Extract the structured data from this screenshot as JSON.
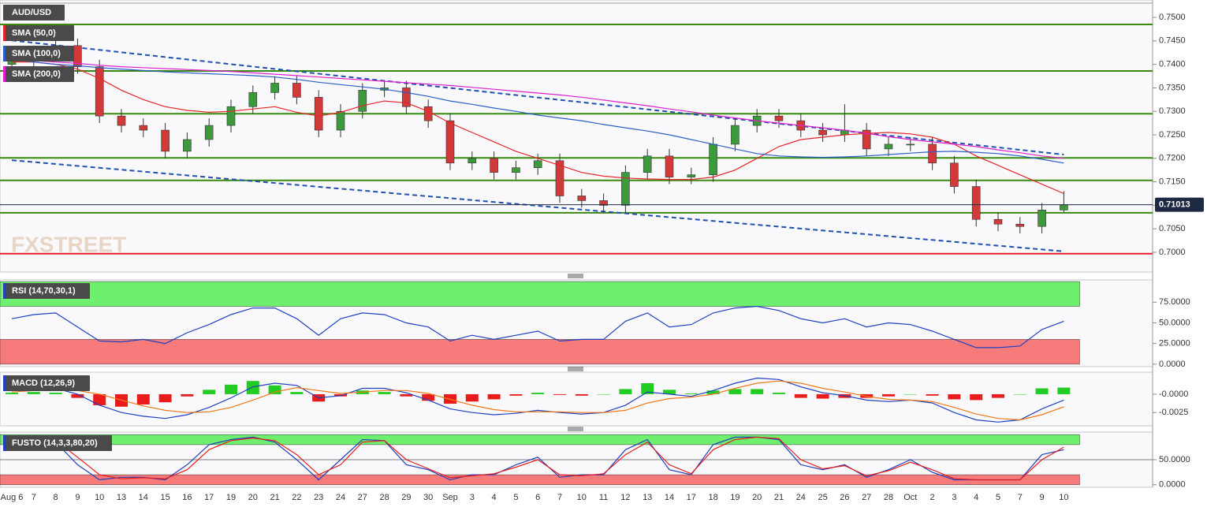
{
  "chart_data": [
    {
      "type": "candlestick",
      "title": "AUD/USD",
      "watermark": "FXSTREET",
      "categories": [
        "Aug 6",
        "7",
        "8",
        "9",
        "10",
        "13",
        "14",
        "15",
        "16",
        "17",
        "19",
        "20",
        "21",
        "22",
        "23",
        "24",
        "27",
        "28",
        "29",
        "30",
        "Sep",
        "3",
        "4",
        "5",
        "6",
        "7",
        "10",
        "11",
        "12",
        "13",
        "14",
        "17",
        "18",
        "19",
        "20",
        "21",
        "24",
        "25",
        "26",
        "27",
        "28",
        "Oct",
        "2",
        "3",
        "4",
        "5",
        "7",
        "9",
        "10"
      ],
      "open": [
        0.74,
        0.741,
        0.7425,
        0.744,
        0.7395,
        0.729,
        0.727,
        0.726,
        0.7215,
        0.724,
        0.727,
        0.731,
        0.734,
        0.736,
        0.733,
        0.726,
        0.73,
        0.7345,
        0.735,
        0.731,
        0.728,
        0.719,
        0.72,
        0.717,
        0.718,
        0.7195,
        0.712,
        0.711,
        0.71,
        0.717,
        0.7205,
        0.716,
        0.7165,
        0.723,
        0.727,
        0.729,
        0.728,
        0.726,
        0.725,
        0.726,
        0.722,
        0.723,
        0.723,
        0.719,
        0.714,
        0.707,
        0.706,
        0.7055,
        0.709
      ],
      "high": [
        0.7425,
        0.744,
        0.7455,
        0.7455,
        0.741,
        0.7305,
        0.7285,
        0.7275,
        0.7255,
        0.7285,
        0.7325,
        0.7355,
        0.7375,
        0.7375,
        0.7345,
        0.7315,
        0.736,
        0.7365,
        0.7365,
        0.7325,
        0.7295,
        0.7215,
        0.7215,
        0.7195,
        0.721,
        0.721,
        0.7135,
        0.7125,
        0.7185,
        0.722,
        0.722,
        0.718,
        0.7245,
        0.7285,
        0.7305,
        0.7305,
        0.7295,
        0.7275,
        0.7315,
        0.7275,
        0.7245,
        0.7245,
        0.7245,
        0.7205,
        0.7155,
        0.7085,
        0.7075,
        0.7105,
        0.713
      ],
      "low": [
        0.7385,
        0.7395,
        0.741,
        0.738,
        0.7275,
        0.7255,
        0.7245,
        0.72,
        0.72,
        0.7225,
        0.7255,
        0.7295,
        0.7325,
        0.7315,
        0.7245,
        0.7245,
        0.7285,
        0.733,
        0.7295,
        0.7265,
        0.7175,
        0.7175,
        0.7155,
        0.7155,
        0.7165,
        0.7105,
        0.7095,
        0.7085,
        0.7085,
        0.7155,
        0.7145,
        0.7145,
        0.715,
        0.7215,
        0.7255,
        0.7265,
        0.7245,
        0.7235,
        0.7235,
        0.7205,
        0.7205,
        0.7215,
        0.7175,
        0.7125,
        0.7055,
        0.7045,
        0.704,
        0.704,
        0.7085
      ],
      "close": [
        0.741,
        0.7425,
        0.744,
        0.7395,
        0.729,
        0.727,
        0.726,
        0.7215,
        0.724,
        0.727,
        0.731,
        0.734,
        0.736,
        0.733,
        0.726,
        0.73,
        0.7345,
        0.735,
        0.731,
        0.728,
        0.719,
        0.72,
        0.717,
        0.718,
        0.7195,
        0.712,
        0.711,
        0.71,
        0.717,
        0.7205,
        0.716,
        0.7165,
        0.723,
        0.727,
        0.729,
        0.728,
        0.726,
        0.725,
        0.726,
        0.722,
        0.723,
        0.723,
        0.719,
        0.714,
        0.707,
        0.706,
        0.7055,
        0.709,
        0.7101
      ],
      "up_color": "#3c9a3c",
      "down_color": "#d23a3a",
      "series": [
        {
          "name": "SMA (50,0)",
          "color": "#e8262a",
          "values": [
            0.7405,
            0.7405,
            0.74,
            0.739,
            0.737,
            0.7345,
            0.7325,
            0.731,
            0.7302,
            0.7298,
            0.73,
            0.7305,
            0.731,
            0.7298,
            0.729,
            0.7298,
            0.7312,
            0.7322,
            0.7318,
            0.73,
            0.7275,
            0.7255,
            0.7235,
            0.7215,
            0.72,
            0.7185,
            0.717,
            0.7162,
            0.7158,
            0.7156,
            0.7155,
            0.7155,
            0.716,
            0.7175,
            0.72,
            0.7225,
            0.724,
            0.7245,
            0.725,
            0.7253,
            0.7255,
            0.7252,
            0.7245,
            0.723,
            0.7205,
            0.7185,
            0.7165,
            0.7145,
            0.7125
          ]
        },
        {
          "name": "SMA (100,0)",
          "color": "#2b5fc8",
          "values": [
            0.741,
            0.7405,
            0.74,
            0.7397,
            0.7393,
            0.739,
            0.7387,
            0.7384,
            0.7382,
            0.738,
            0.7378,
            0.7376,
            0.7373,
            0.7368,
            0.7362,
            0.7357,
            0.7352,
            0.7347,
            0.734,
            0.7332,
            0.7322,
            0.7315,
            0.7307,
            0.73,
            0.7292,
            0.7286,
            0.728,
            0.7272,
            0.7265,
            0.7258,
            0.725,
            0.724,
            0.723,
            0.722,
            0.721,
            0.7205,
            0.7203,
            0.7202,
            0.7203,
            0.7205,
            0.7208,
            0.7211,
            0.7214,
            0.7215,
            0.7213,
            0.721,
            0.7205,
            0.7198,
            0.719
          ]
        },
        {
          "name": "SMA (200,0)",
          "color": "#e020d0",
          "values": [
            0.741,
            0.7408,
            0.7405,
            0.7402,
            0.7398,
            0.7395,
            0.7393,
            0.7391,
            0.7389,
            0.7387,
            0.7385,
            0.7382,
            0.7379,
            0.7376,
            0.7373,
            0.737,
            0.7367,
            0.7364,
            0.7361,
            0.7358,
            0.7355,
            0.7351,
            0.7347,
            0.7343,
            0.7339,
            0.7335,
            0.733,
            0.7324,
            0.7318,
            0.7312,
            0.7305,
            0.7299,
            0.7292,
            0.7286,
            0.728,
            0.7275,
            0.727,
            0.7265,
            0.726,
            0.7253,
            0.7246,
            0.724,
            0.7235,
            0.723,
            0.7225,
            0.7218,
            0.7212,
            0.7205,
            0.72
          ]
        }
      ],
      "levels": [
        0.7485,
        0.7386,
        0.7295,
        0.7201,
        0.7153,
        0.7084
      ],
      "level_color": "#3a8a10",
      "key_level": 0.6997,
      "key_level_color": "#e8202a",
      "trendlines": [
        {
          "x": [
            0,
            48
          ],
          "y": [
            0.7451,
            0.7208
          ]
        },
        {
          "x": [
            0,
            48
          ],
          "y": [
            0.7196,
            0.7002
          ]
        }
      ],
      "trendline_color": "#2050b0",
      "last_price": 0.71013,
      "ylim": [
        0.6958,
        0.7537
      ],
      "yticks": [
        {
          "value": 0.7,
          "label": "0.7000"
        },
        {
          "value": 0.705,
          "label": "0.7050"
        },
        {
          "value": 0.71,
          "label": "0.7100"
        },
        {
          "value": 0.715,
          "label": "0.7150"
        },
        {
          "value": 0.72,
          "label": "0.7200"
        },
        {
          "value": 0.725,
          "label": "0.7250"
        },
        {
          "value": 0.73,
          "label": "0.7300"
        },
        {
          "value": 0.735,
          "label": "0.7350"
        },
        {
          "value": 0.74,
          "label": "0.7400"
        },
        {
          "value": 0.745,
          "label": "0.7450"
        },
        {
          "value": 0.75,
          "label": "0.7500"
        }
      ]
    },
    {
      "type": "line",
      "title": "RSI (14,70,30,1)",
      "title_color": "#2040c0",
      "series": [
        {
          "color": "#2040c0",
          "values": [
            55,
            60,
            62,
            45,
            28,
            27,
            30,
            25,
            38,
            48,
            60,
            68,
            68,
            55,
            35,
            55,
            62,
            60,
            50,
            45,
            28,
            35,
            30,
            35,
            40,
            28,
            30,
            30,
            52,
            62,
            45,
            48,
            62,
            68,
            70,
            65,
            55,
            50,
            55,
            45,
            50,
            48,
            40,
            30,
            20,
            20,
            22,
            42,
            52
          ]
        }
      ],
      "bands": [
        {
          "range": [
            70,
            100
          ],
          "color": "#6ef06e"
        },
        {
          "range": [
            0,
            30
          ],
          "color": "#f77b7b"
        }
      ],
      "ylim": [
        -3,
        102
      ],
      "yticks": [
        {
          "value": 0,
          "label": "0.0000"
        },
        {
          "value": 25,
          "label": "25.0000"
        },
        {
          "value": 50,
          "label": "50.0000"
        },
        {
          "value": 75,
          "label": "75.0000"
        }
      ]
    },
    {
      "type": "macd",
      "title": "MACD (12,26,9)",
      "title_color": "#2040c0",
      "series": [
        {
          "color": "#2040c0",
          "values": [
            0.0005,
            0.0008,
            0.0008,
            0.0,
            -0.0015,
            -0.0025,
            -0.003,
            -0.0033,
            -0.0028,
            -0.0018,
            -0.0005,
            0.001,
            0.0015,
            0.0012,
            -0.0005,
            -0.0002,
            0.0008,
            0.0008,
            0.0002,
            -0.0008,
            -0.002,
            -0.0025,
            -0.0028,
            -0.0026,
            -0.0022,
            -0.0025,
            -0.0027,
            -0.0025,
            -0.0015,
            0.0003,
            0.0,
            -0.0003,
            0.0005,
            0.0015,
            0.0022,
            0.002,
            0.001,
            0.0002,
            -0.0002,
            -0.0008,
            -0.001,
            -0.0008,
            -0.0012,
            -0.0025,
            -0.0035,
            -0.0038,
            -0.0035,
            -0.002,
            -0.0008
          ]
        },
        {
          "color": "#f07818",
          "values": [
            0.0003,
            0.0005,
            0.0006,
            0.0005,
            0.0,
            -0.0008,
            -0.0016,
            -0.0022,
            -0.0025,
            -0.0024,
            -0.0018,
            -0.0008,
            0.0003,
            0.0009,
            0.0005,
            0.0001,
            0.0003,
            0.0005,
            0.0005,
            0.0001,
            -0.0007,
            -0.0015,
            -0.0021,
            -0.0024,
            -0.0024,
            -0.0024,
            -0.0025,
            -0.0025,
            -0.0022,
            -0.0012,
            -0.0006,
            -0.0004,
            0.0,
            0.0008,
            0.0015,
            0.0018,
            0.0015,
            0.0008,
            0.0003,
            -0.0003,
            -0.0007,
            -0.0008,
            -0.001,
            -0.0018,
            -0.0027,
            -0.0033,
            -0.0035,
            -0.0028,
            -0.0017
          ]
        }
      ],
      "histogram": [
        0.0002,
        0.0003,
        0.0002,
        -0.0005,
        -0.0015,
        -0.0017,
        -0.0014,
        -0.0011,
        -0.0003,
        0.0006,
        0.0013,
        0.0018,
        0.0012,
        0.0003,
        -0.001,
        -0.0003,
        0.0005,
        0.0003,
        -0.0003,
        -0.0009,
        -0.0013,
        -0.001,
        -0.0007,
        -0.0002,
        0.0002,
        -0.0001,
        -0.0002,
        0.0,
        0.0007,
        0.0015,
        0.0006,
        0.0001,
        0.0005,
        0.0007,
        0.0007,
        0.0002,
        -0.0005,
        -0.0006,
        -0.0005,
        -0.0005,
        -0.0003,
        0.0,
        -0.0002,
        -0.0007,
        -0.0008,
        -0.0005,
        0.0,
        0.0008,
        0.0009
      ],
      "hist_up_color": "#22cc22",
      "hist_down_color": "#e81c1c",
      "ylim": [
        -0.0043,
        0.003
      ],
      "yticks": [
        {
          "value": 0,
          "label": "-0.0000"
        },
        {
          "value": -0.0025,
          "label": "-0.0025"
        }
      ]
    },
    {
      "type": "line",
      "title": "FUSTO (14,3,3,80,20)",
      "title_color": "#2040c0",
      "series": [
        {
          "color": "#2040c0",
          "values": [
            80,
            90,
            85,
            40,
            10,
            15,
            15,
            10,
            40,
            80,
            90,
            95,
            85,
            50,
            10,
            50,
            90,
            88,
            40,
            30,
            10,
            20,
            20,
            40,
            55,
            15,
            20,
            20,
            70,
            90,
            30,
            20,
            80,
            95,
            95,
            90,
            40,
            30,
            40,
            15,
            30,
            50,
            25,
            10,
            10,
            10,
            10,
            60,
            70
          ]
        },
        {
          "color": "#e81c1c",
          "values": [
            75,
            85,
            88,
            55,
            20,
            12,
            14,
            12,
            30,
            70,
            88,
            93,
            88,
            60,
            20,
            40,
            85,
            88,
            50,
            32,
            14,
            18,
            22,
            35,
            50,
            20,
            18,
            22,
            60,
            85,
            40,
            22,
            70,
            90,
            95,
            92,
            50,
            32,
            38,
            18,
            28,
            45,
            30,
            12,
            10,
            10,
            10,
            50,
            75
          ]
        }
      ],
      "bands": [
        {
          "range": [
            80,
            100
          ],
          "color": "#6ef06e"
        },
        {
          "range": [
            0,
            20
          ],
          "color": "#f77b7b"
        }
      ],
      "reference_line": 50,
      "ylim": [
        -5,
        105
      ],
      "yticks": [
        {
          "value": 0,
          "label": "0.0000"
        },
        {
          "value": 50,
          "label": "50.0000"
        }
      ]
    }
  ]
}
